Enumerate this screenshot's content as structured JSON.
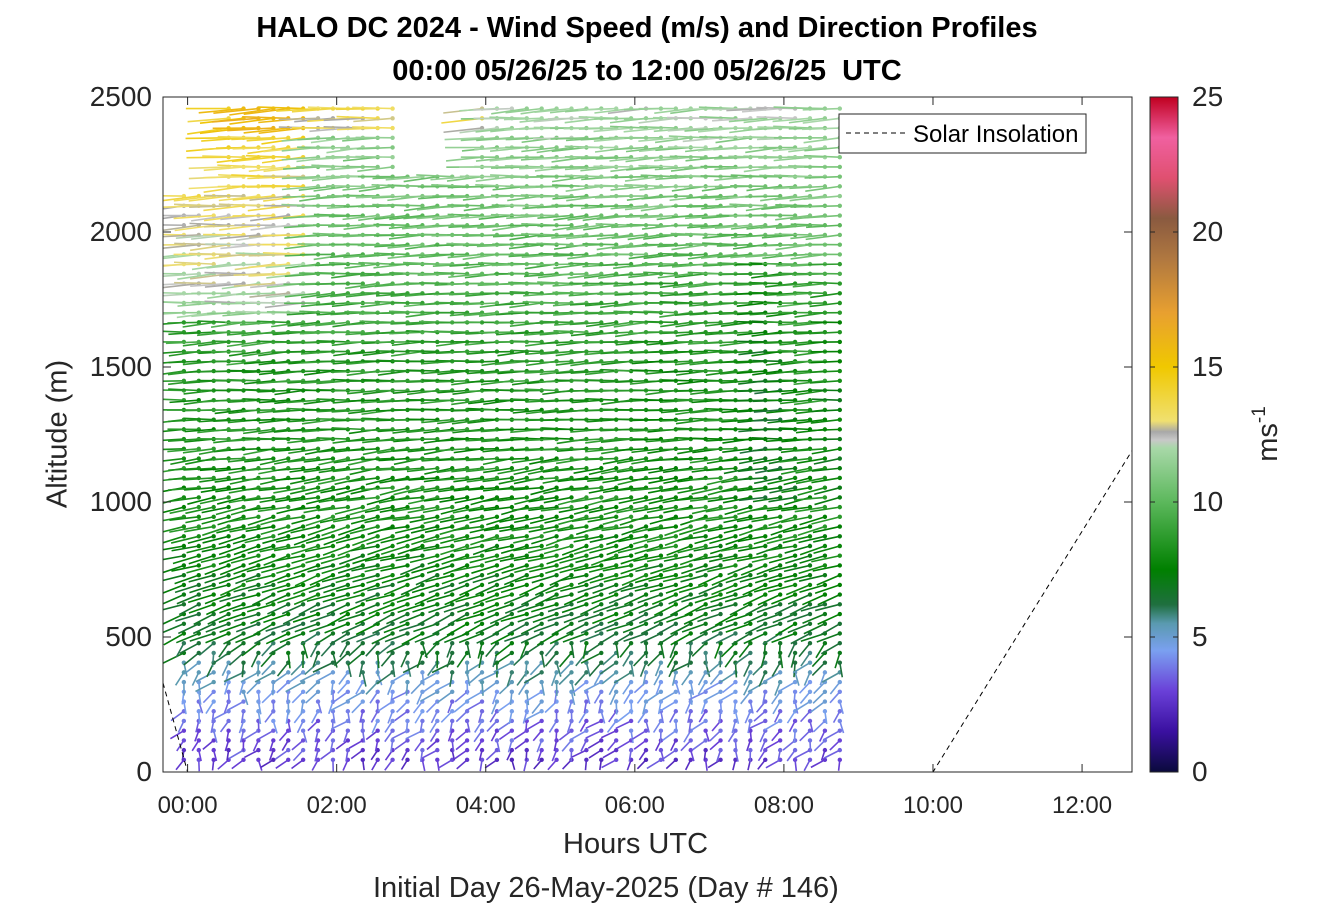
{
  "figure": {
    "title_line1": "HALO DC 2024 - Wind Speed (m/s) and Direction Profiles",
    "title_line2": "00:00 05/26/25 to 12:00 05/26/25  UTC",
    "xlabel": "Hours UTC",
    "ylabel": "Altitude (m)",
    "footnote": "Initial Day 26-May-2025 (Day # 146)",
    "legend_label": "Solar Insolation",
    "colorbar_label_base": "ms",
    "colorbar_label_exp": "-1"
  },
  "chart_data": {
    "type": "scatter",
    "subtype": "wind-barb-profiles",
    "title": "HALO DC 2024 - Wind Speed (m/s) and Direction Profiles",
    "subtitle": "00:00 05/26/25 to 12:00 05/26/25  UTC",
    "xlabel": "Hours UTC",
    "ylabel": "Altitude (m)",
    "xlim": [
      -0.33,
      12.67
    ],
    "ylim": [
      0,
      2500
    ],
    "x_ticks": [
      0,
      2,
      4,
      6,
      8,
      10,
      12
    ],
    "x_tick_labels": [
      "00:00",
      "02:00",
      "04:00",
      "06:00",
      "08:00",
      "10:00",
      "12:00"
    ],
    "y_ticks": [
      0,
      500,
      1000,
      1500,
      2000,
      2500
    ],
    "y_tick_labels": [
      "0",
      "500",
      "1000",
      "1500",
      "2000",
      "2500"
    ],
    "colorbar": {
      "label": "ms-1",
      "range": [
        0,
        25
      ],
      "ticks": [
        0,
        5,
        10,
        15,
        20,
        25
      ],
      "tick_labels": [
        "0",
        "5",
        "10",
        "15",
        "20",
        "25"
      ],
      "stops": [
        {
          "v": 0,
          "color": "#0a0a3c"
        },
        {
          "v": 1.5,
          "color": "#3a10a0"
        },
        {
          "v": 3,
          "color": "#6a40d8"
        },
        {
          "v": 4.5,
          "color": "#7aa0f0"
        },
        {
          "v": 5.5,
          "color": "#5a9ab0"
        },
        {
          "v": 6.2,
          "color": "#1f6f3f"
        },
        {
          "v": 7.5,
          "color": "#008000"
        },
        {
          "v": 10,
          "color": "#5cb85c"
        },
        {
          "v": 12,
          "color": "#a8d8a8"
        },
        {
          "v": 12.3,
          "color": "#c8c8c8"
        },
        {
          "v": 12.6,
          "color": "#a8a8a8"
        },
        {
          "v": 13,
          "color": "#f0e070"
        },
        {
          "v": 15,
          "color": "#f0c800"
        },
        {
          "v": 17,
          "color": "#e8a030"
        },
        {
          "v": 19,
          "color": "#b07840"
        },
        {
          "v": 20.5,
          "color": "#8a5a40"
        },
        {
          "v": 22,
          "color": "#e05070"
        },
        {
          "v": 23.5,
          "color": "#f060a0"
        },
        {
          "v": 25,
          "color": "#c00020"
        }
      ]
    },
    "legend": {
      "entries": [
        "Solar Insolation"
      ],
      "placement": "top-right"
    },
    "profiles": {
      "time_start_h": -0.05,
      "time_end_h": 8.8,
      "time_step_h": 0.2,
      "alt_start_m": 45,
      "alt_end_m": 2490,
      "alt_step_m": 36
    },
    "wind_speed_pattern_ms": [
      {
        "alt": 0,
        "speed": 2.5
      },
      {
        "alt": 300,
        "speed": 4.5
      },
      {
        "alt": 450,
        "speed": 6.5
      },
      {
        "alt": 900,
        "speed": 8.0
      },
      {
        "alt": 1500,
        "speed": 8.5
      },
      {
        "alt": 1900,
        "speed": 10.0
      },
      {
        "alt": 2200,
        "speed": 11.0
      },
      {
        "alt": 2500,
        "speed": 12.0
      }
    ],
    "solar_insolation": {
      "x": [
        -0.33,
        0.0,
        10.0,
        12.67
      ],
      "y": [
        330,
        0,
        0,
        1190
      ],
      "style": "dashed"
    }
  }
}
